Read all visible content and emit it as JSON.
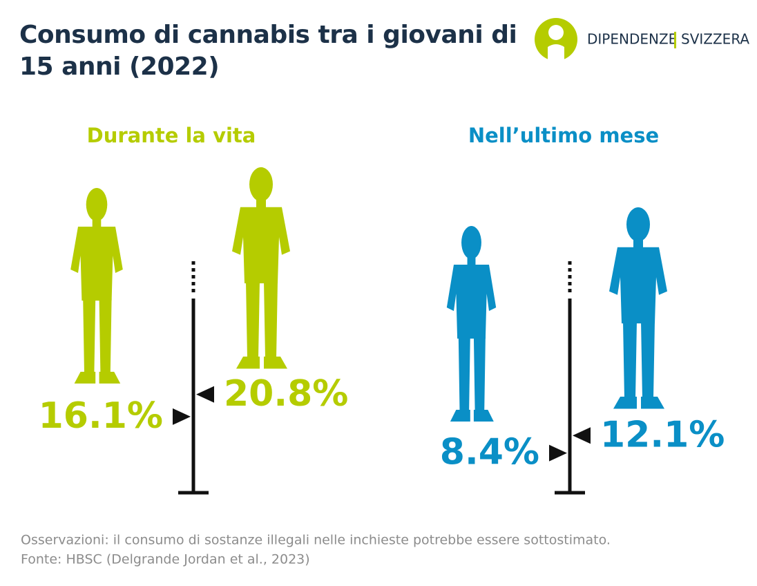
{
  "header": {
    "title": "Consumo di cannabis tra i giovani di 15 anni (2022)",
    "logo_left": "DIPENDENZE",
    "logo_right": "SVIZZERA"
  },
  "chart_data": [
    {
      "type": "marker",
      "title": "Durante la vita",
      "values": [
        16.1,
        20.8
      ],
      "value_labels": [
        "16.1%",
        "20.8%"
      ],
      "color": "#b5cc00",
      "ylim": [
        0,
        49
      ]
    },
    {
      "type": "marker",
      "title": "Nell’ultimo mese",
      "values": [
        8.4,
        12.1
      ],
      "value_labels": [
        "8.4%",
        "12.1%"
      ],
      "color": "#0a8fc6",
      "ylim": [
        0,
        49
      ]
    }
  ],
  "footer": {
    "note": "Osservazioni: il consumo di sostanze illegali nelle inchieste potrebbe essere sottostimato.",
    "source": "Fonte: HBSC (Delgrande Jordan et al., 2023)"
  }
}
